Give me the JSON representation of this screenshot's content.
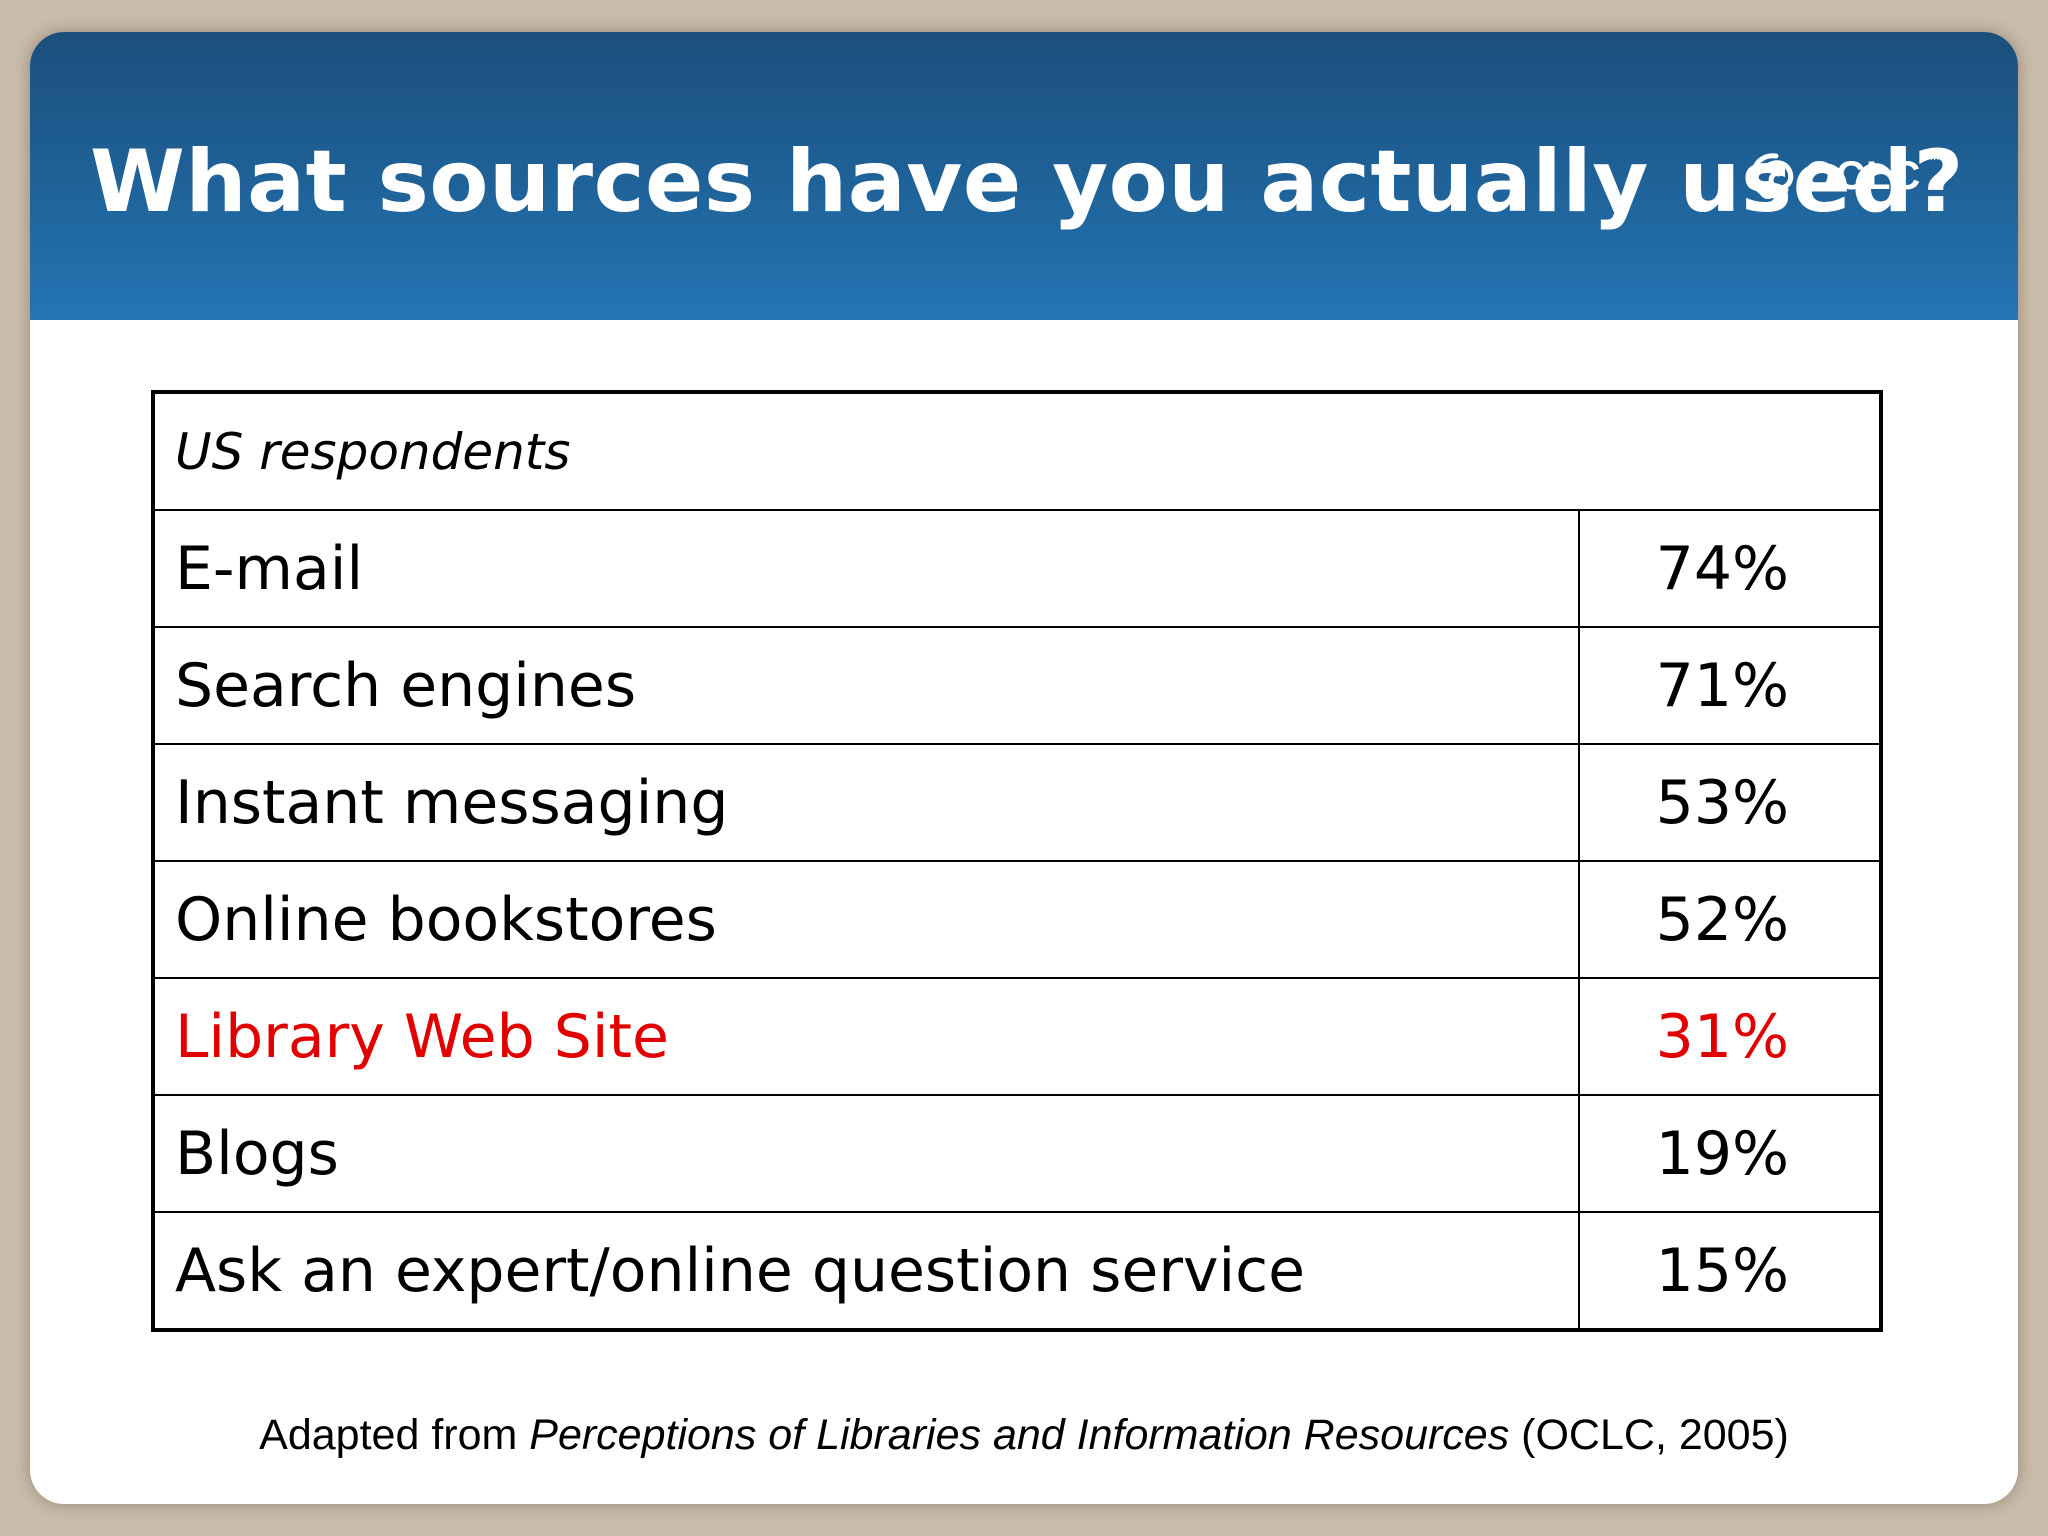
{
  "slide": {
    "title": "What sources have you actually used?",
    "logo": {
      "text": "OCLC",
      "tm": "TM"
    }
  },
  "table": {
    "caption": "US respondents",
    "rows": [
      {
        "label": "E-mail",
        "value": "74%",
        "highlight": false
      },
      {
        "label": "Search engines",
        "value": "71%",
        "highlight": false
      },
      {
        "label": "Instant messaging",
        "value": "53%",
        "highlight": false
      },
      {
        "label": "Online bookstores",
        "value": "52%",
        "highlight": false
      },
      {
        "label": "Library Web Site",
        "value": "31%",
        "highlight": true
      },
      {
        "label": "Blogs",
        "value": "19%",
        "highlight": false
      },
      {
        "label": "Ask an expert/online question service",
        "value": "15%",
        "highlight": false
      }
    ]
  },
  "source": {
    "prefix": "Adapted from ",
    "publication": "Perceptions of Libraries and Information Resources",
    "suffix": " (OCLC, 2005)"
  },
  "colors": {
    "header_top": "#1c4f7c",
    "header_bottom": "#2575b5",
    "highlight_text": "#e00000",
    "page_background": "#c9bcaa"
  }
}
